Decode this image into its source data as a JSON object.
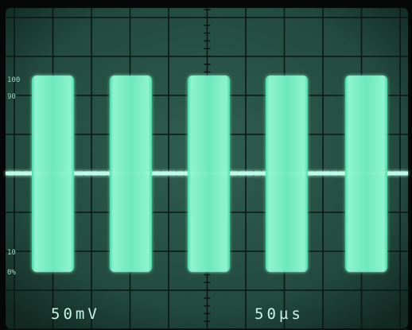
{
  "graticule": {
    "labels": [
      "100",
      "90",
      "10",
      "0%"
    ]
  },
  "readout": {
    "volts_per_div": "50mV",
    "time_per_div": "50µs"
  }
}
